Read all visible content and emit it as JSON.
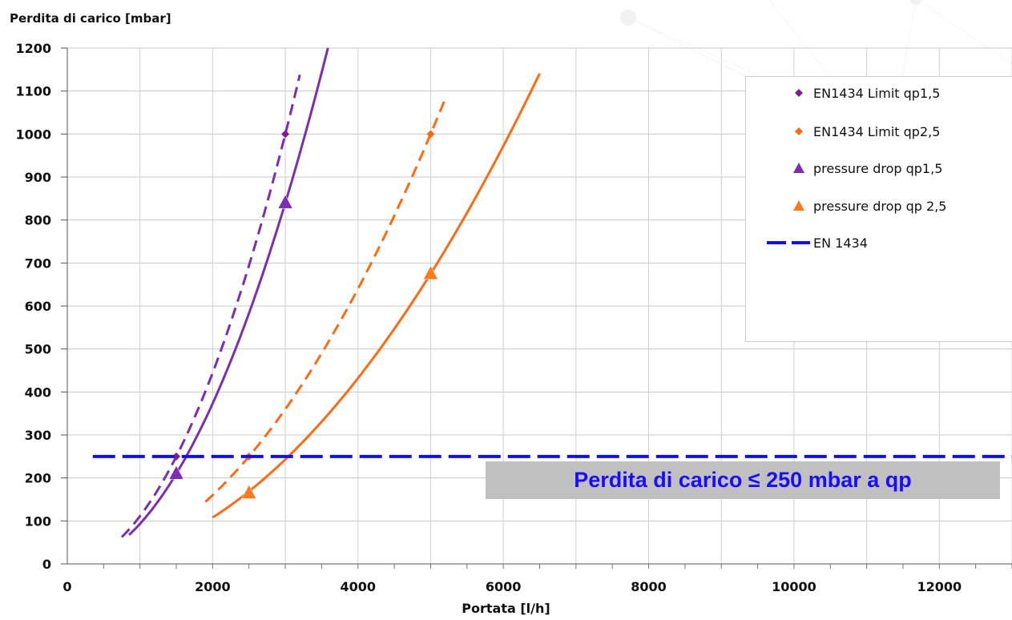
{
  "chart_data": {
    "type": "line",
    "ylabel": "Perdita di carico [mbar]",
    "xlabel": "Portata [l/h]",
    "xlim": [
      0,
      13000
    ],
    "ylim": [
      0,
      1200
    ],
    "x_ticks": [
      0,
      2000,
      4000,
      6000,
      8000,
      10000,
      12000
    ],
    "y_ticks": [
      0,
      100,
      200,
      300,
      400,
      500,
      600,
      700,
      800,
      900,
      1000,
      1100,
      1200
    ],
    "grid": true,
    "legend_position": "top-right",
    "series": [
      {
        "name": "EN1434 Limit qp1,5",
        "marker": "diamond",
        "color": "#7b1f8c",
        "points": [
          [
            1500,
            250
          ],
          [
            3000,
            1000
          ]
        ]
      },
      {
        "name": "EN1434 Limit qp2,5",
        "marker": "diamond",
        "color": "#ff6a10",
        "points": [
          [
            2500,
            250
          ],
          [
            5000,
            1000
          ]
        ]
      },
      {
        "name": "pressure drop qp1,5",
        "marker": "triangle",
        "color": "#7b2fb0",
        "points": [
          [
            1500,
            210
          ],
          [
            3000,
            840
          ]
        ]
      },
      {
        "name": "pressure drop qp 2,5",
        "marker": "triangle",
        "color": "#ff7a1a",
        "points": [
          [
            2500,
            165
          ],
          [
            5000,
            675
          ]
        ]
      },
      {
        "name": "EN 1434",
        "marker": "none",
        "color": "#1010ee",
        "style": "dashed",
        "points": [
          [
            350,
            250
          ],
          [
            13000,
            250
          ]
        ]
      }
    ],
    "trendlines": [
      {
        "color": "#7b2fb0",
        "style": "dashed",
        "from": 750,
        "to": 3200,
        "coef": 0.00011111
      },
      {
        "color": "#7b2fb0",
        "style": "solid",
        "from": 850,
        "to": 3600,
        "coef": 9.33e-05
      },
      {
        "color": "#ff6a10",
        "style": "dashed",
        "from": 1900,
        "to": 5200,
        "coef": 4e-05
      },
      {
        "color": "#ff6a10",
        "style": "solid",
        "from": 2000,
        "to": 6500,
        "coef": 2.7e-05
      }
    ],
    "annotation": "Perdita di carico ≤ 250 mbar a qp"
  }
}
